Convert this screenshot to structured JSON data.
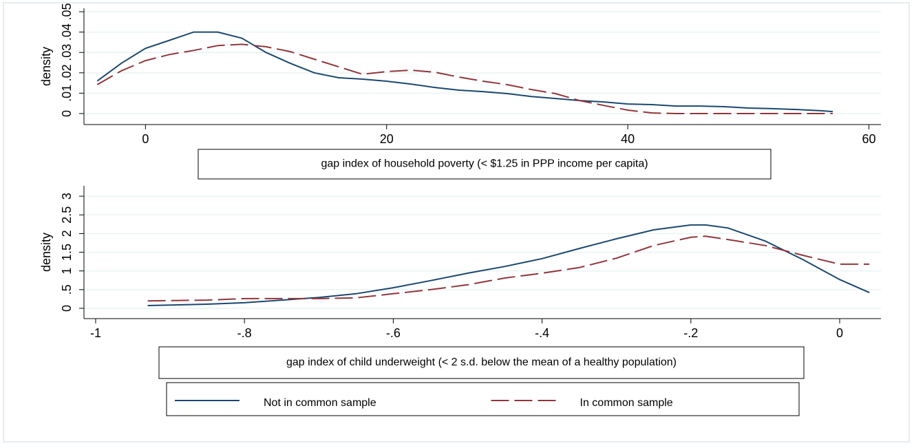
{
  "chart_data": [
    {
      "type": "line",
      "ylabel": "density",
      "xlabel": "gap index of household poverty (< $1.25 in PPP income per capita)",
      "x": [
        -4,
        -2,
        0,
        2,
        4,
        6,
        8,
        10,
        12,
        14,
        16,
        18,
        20,
        22,
        24,
        26,
        28,
        30,
        32,
        34,
        36,
        38,
        40,
        42,
        44,
        46,
        48,
        50,
        52,
        54,
        56,
        57
      ],
      "series": [
        {
          "color": "#1a476f",
          "line_style": "solid",
          "values": [
            0.016,
            0.0247,
            0.032,
            0.036,
            0.04,
            0.04,
            0.037,
            0.03,
            0.0247,
            0.02,
            0.0176,
            0.0169,
            0.0159,
            0.0145,
            0.0128,
            0.0115,
            0.0108,
            0.0098,
            0.0084,
            0.0074,
            0.0064,
            0.0057,
            0.0047,
            0.0044,
            0.0037,
            0.0037,
            0.0034,
            0.0027,
            0.0024,
            0.002,
            0.0014,
            0.001
          ]
        },
        {
          "color": "#90353b",
          "line_style": "dashed",
          "values": [
            0.0142,
            0.021,
            0.026,
            0.029,
            0.031,
            0.0334,
            0.034,
            0.0328,
            0.0304,
            0.0267,
            0.023,
            0.0193,
            0.0206,
            0.0213,
            0.0203,
            0.0179,
            0.0159,
            0.0142,
            0.0118,
            0.0098,
            0.0064,
            0.004,
            0.0017,
            0.0003,
            0,
            0,
            0,
            0,
            0,
            0,
            0,
            0
          ]
        }
      ],
      "xlim": [
        -5.1,
        61
      ],
      "xticks": [
        0,
        20,
        40,
        60
      ],
      "ylim": [
        -0.0054,
        0.0517
      ],
      "yticks": [
        0,
        {
          "value": 0.01,
          "label": ".01"
        },
        {
          "value": 0.02,
          "label": ".02"
        },
        {
          "value": 0.03,
          "label": ".03"
        },
        {
          "value": 0.04,
          "label": ".04"
        },
        {
          "value": 0.05,
          "label": ".05"
        }
      ],
      "grid": true
    },
    {
      "type": "line",
      "ylabel": "density",
      "xlabel": "gap index of child underweight (< 2 s.d. below the mean of a healthy population)",
      "x": [
        -0.93,
        -0.85,
        -0.8,
        -0.75,
        -0.7,
        -0.65,
        -0.6,
        -0.55,
        -0.5,
        -0.45,
        -0.4,
        -0.35,
        -0.3,
        -0.25,
        -0.2,
        -0.18,
        -0.15,
        -0.1,
        -0.05,
        0,
        0.04
      ],
      "series": [
        {
          "name": "Not in common sample",
          "color": "#1a476f",
          "line_style": "solid",
          "values": [
            0.074,
            0.11,
            0.15,
            0.22,
            0.29,
            0.39,
            0.55,
            0.74,
            0.94,
            1.12,
            1.33,
            1.6,
            1.86,
            2.1,
            2.23,
            2.23,
            2.15,
            1.8,
            1.31,
            0.77,
            0.42
          ]
        },
        {
          "name": "In common sample",
          "color": "#90353b",
          "line_style": "dashed",
          "values": [
            0.2,
            0.22,
            0.26,
            0.26,
            0.26,
            0.28,
            0.39,
            0.5,
            0.63,
            0.81,
            0.94,
            1.09,
            1.34,
            1.68,
            1.9,
            1.93,
            1.84,
            1.68,
            1.42,
            1.18,
            1.18
          ]
        }
      ],
      "xlim": [
        -1.0157,
        0.0555
      ],
      "xticks": [
        -1,
        {
          "value": -0.8,
          "label": "-.8"
        },
        {
          "value": -0.6,
          "label": "-.6"
        },
        {
          "value": -0.4,
          "label": "-.4"
        },
        {
          "value": -0.2,
          "label": "-.2"
        },
        0
      ],
      "ylim": [
        -0.276,
        3.278
      ],
      "yticks": [
        0,
        {
          "value": 0.5,
          "label": ".5"
        },
        1,
        {
          "value": 1.5,
          "label": "1.5"
        },
        2,
        {
          "value": 2.5,
          "label": "2.5"
        },
        3
      ],
      "grid": true
    }
  ]
}
